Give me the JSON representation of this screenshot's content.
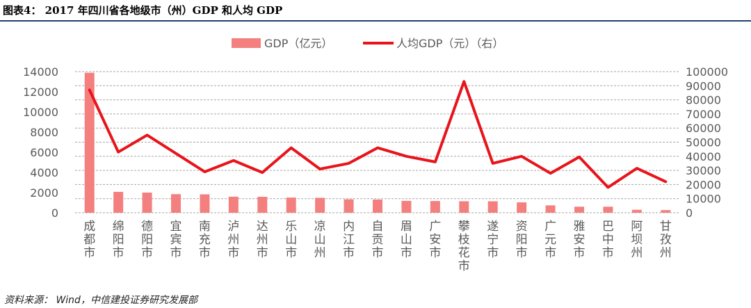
{
  "figure": {
    "title": "图表4：  2017 年四川省各地级市（州）GDP 和人均 GDP",
    "source": "资料来源：  Wind，中信建投证券研究发展部"
  },
  "colors": {
    "bar": "#f47f7f",
    "line": "#e8141b",
    "grid": "#a6a6a6",
    "title_rule": "#1f3f6e"
  },
  "chart_data": {
    "type": "bar+line",
    "categories": [
      "成都市",
      "绵阳市",
      "德阳市",
      "宜宾市",
      "南充市",
      "泸州市",
      "达州市",
      "乐山市",
      "凉山州",
      "内江市",
      "自贡市",
      "眉山市",
      "广安市",
      "攀枝花市",
      "遂宁市",
      "资阳市",
      "广元市",
      "雅安市",
      "巴中市",
      "阿坝州",
      "甘孜州"
    ],
    "series": [
      {
        "name": "GDP（亿元）",
        "type": "bar",
        "axis": "left",
        "values": [
          13890,
          2074,
          2000,
          1847,
          1827,
          1597,
          1584,
          1507,
          1481,
          1333,
          1312,
          1180,
          1163,
          1144,
          1139,
          1030,
          732,
          602,
          602,
          295,
          262
        ]
      },
      {
        "name": "人均GDP（元）（右）",
        "type": "line",
        "axis": "right",
        "values": [
          87000,
          43000,
          55000,
          42000,
          29000,
          37000,
          28500,
          46000,
          31000,
          35000,
          46000,
          40000,
          36000,
          93000,
          35000,
          40000,
          28000,
          39500,
          18000,
          31500,
          22000
        ]
      }
    ],
    "y_left": {
      "min": 0,
      "max": 14000,
      "ticks": [
        0,
        2000,
        4000,
        6000,
        8000,
        10000,
        12000,
        14000
      ]
    },
    "y_right": {
      "min": 0,
      "max": 100000,
      "ticks": [
        0,
        10000,
        20000,
        30000,
        40000,
        50000,
        60000,
        70000,
        80000,
        90000,
        100000
      ]
    },
    "grid": true,
    "legend_position": "top"
  }
}
